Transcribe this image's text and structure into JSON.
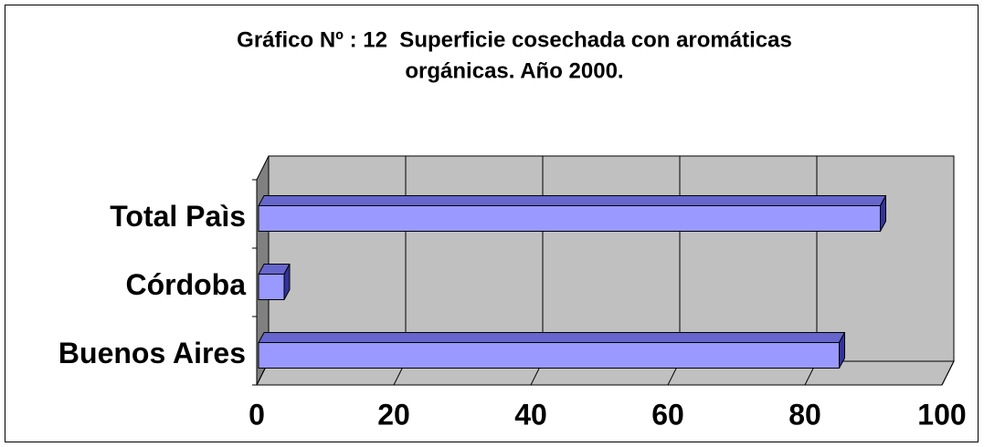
{
  "chart_data": {
    "type": "bar3d_horizontal",
    "title": [
      "Gráfico Nº : 12  Superficie cosechada con aromáticas",
      "orgánicas. Año 2000."
    ],
    "categories": [
      "Buenos Aires",
      "Córdoba",
      "Total Paìs"
    ],
    "values": [
      85,
      4,
      91
    ],
    "color": "#9999ff",
    "xlim": [
      0,
      100
    ],
    "xticks": [
      0,
      20,
      40,
      60,
      80,
      100
    ],
    "grid": true
  }
}
